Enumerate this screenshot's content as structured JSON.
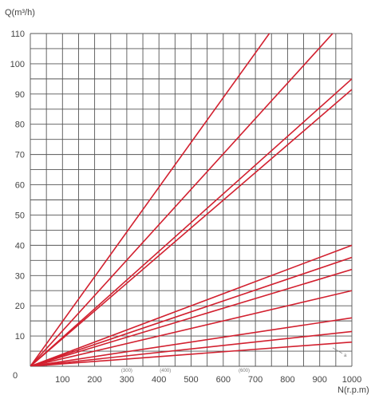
{
  "chart_data": {
    "type": "line",
    "title": "",
    "xlabel": "N(r.p.m)",
    "ylabel": "Q(m³/h)",
    "origin_label": "0",
    "xlim": [
      0,
      1000
    ],
    "ylim": [
      0,
      110
    ],
    "grid": true,
    "x_ticks": [
      100,
      200,
      300,
      400,
      500,
      600,
      700,
      800,
      900,
      1000
    ],
    "y_ticks": [
      10,
      20,
      30,
      40,
      50,
      60,
      70,
      80,
      90,
      100,
      110
    ],
    "x_minor_ticks": [
      50,
      150,
      250,
      350,
      450,
      550,
      650,
      750,
      850,
      950
    ],
    "y_minor_ticks": [
      5,
      15,
      25,
      35,
      45,
      55,
      65,
      75,
      85,
      95,
      105
    ],
    "small_notes": [
      {
        "label": "(300)",
        "x": 300
      },
      {
        "label": "(400)",
        "x": 420
      },
      {
        "label": "(600)",
        "x": 665
      }
    ],
    "annotation": {
      "label": "a",
      "x": 980,
      "y": 4
    },
    "series": [
      {
        "x": [
          0,
          1000
        ],
        "y": [
          0,
          148
        ]
      },
      {
        "x": [
          0,
          1000
        ],
        "y": [
          0,
          117
        ]
      },
      {
        "x": [
          0,
          1000
        ],
        "y": [
          0,
          95
        ]
      },
      {
        "x": [
          0,
          1000
        ],
        "y": [
          0,
          91.5
        ]
      },
      {
        "x": [
          0,
          1000
        ],
        "y": [
          0,
          40
        ]
      },
      {
        "x": [
          0,
          1000
        ],
        "y": [
          0,
          36
        ]
      },
      {
        "x": [
          0,
          1000
        ],
        "y": [
          0,
          32
        ]
      },
      {
        "x": [
          0,
          1000
        ],
        "y": [
          0,
          25
        ]
      },
      {
        "x": [
          0,
          1000
        ],
        "y": [
          0,
          16
        ]
      },
      {
        "x": [
          0,
          1000
        ],
        "y": [
          0,
          11.5
        ]
      },
      {
        "x": [
          0,
          1000
        ],
        "y": [
          0,
          8
        ]
      }
    ]
  }
}
